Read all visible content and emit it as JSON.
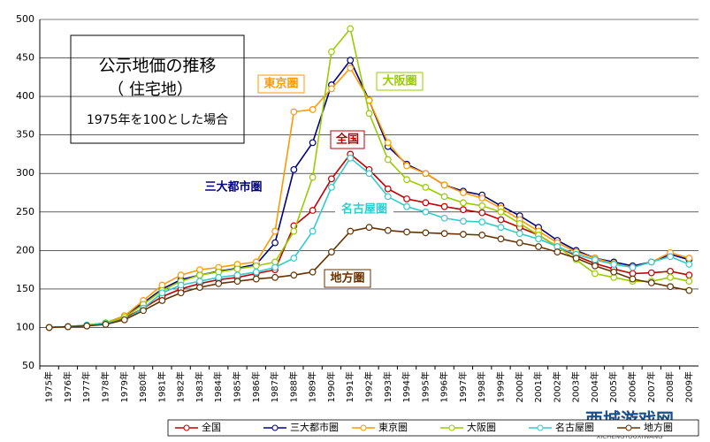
{
  "chart_data": {
    "type": "line",
    "title": "公示地価の推移",
    "subtitle": "（ 住宅地）",
    "note": "1975年を100とした場合",
    "categories": [
      "1975年",
      "1976年",
      "1977年",
      "1978年",
      "1979年",
      "1980年",
      "1981年",
      "1982年",
      "1983年",
      "1984年",
      "1985年",
      "1986年",
      "1987年",
      "1988年",
      "1989年",
      "1990年",
      "1991年",
      "1992年",
      "1993年",
      "1994年",
      "1995年",
      "1996年",
      "1997年",
      "1998年",
      "1999年",
      "2000年",
      "2001年",
      "2002年",
      "2003年",
      "2004年",
      "2005年",
      "2006年",
      "2007年",
      "2008年",
      "2009年"
    ],
    "series": [
      {
        "name": "全国",
        "color": "#c00000",
        "values": [
          100,
          101,
          102,
          105,
          112,
          125,
          140,
          150,
          157,
          162,
          165,
          170,
          175,
          232,
          252,
          293,
          325,
          305,
          280,
          267,
          262,
          257,
          253,
          249,
          240,
          230,
          220,
          205,
          193,
          183,
          176,
          170,
          171,
          173,
          168
        ]
      },
      {
        "name": "三大都市圏",
        "color": "#000080",
        "values": [
          100,
          101,
          103,
          106,
          115,
          132,
          150,
          162,
          168,
          173,
          177,
          182,
          210,
          305,
          340,
          415,
          447,
          395,
          335,
          312,
          300,
          285,
          277,
          272,
          258,
          245,
          230,
          213,
          200,
          190,
          185,
          180,
          185,
          195,
          188
        ]
      },
      {
        "name": "東京圏",
        "color": "#ff9900",
        "values": [
          100,
          101,
          103,
          106,
          115,
          135,
          155,
          168,
          175,
          178,
          182,
          185,
          225,
          380,
          383,
          410,
          437,
          395,
          340,
          310,
          300,
          285,
          275,
          268,
          255,
          240,
          225,
          210,
          198,
          190,
          183,
          178,
          185,
          197,
          190
        ]
      },
      {
        "name": "大阪圏",
        "color": "#99cc00",
        "values": [
          100,
          101,
          103,
          106,
          113,
          130,
          148,
          160,
          168,
          172,
          176,
          180,
          185,
          225,
          295,
          458,
          488,
          378,
          318,
          292,
          282,
          270,
          262,
          258,
          250,
          235,
          220,
          205,
          188,
          170,
          165,
          160,
          160,
          165,
          160
        ]
      },
      {
        "name": "名古屋圏",
        "color": "#33cccc",
        "values": [
          100,
          101,
          103,
          105,
          110,
          125,
          145,
          155,
          160,
          165,
          168,
          172,
          178,
          190,
          225,
          282,
          320,
          300,
          270,
          257,
          250,
          242,
          238,
          237,
          230,
          222,
          215,
          205,
          195,
          188,
          182,
          178,
          185,
          192,
          182
        ]
      },
      {
        "name": "地方圏",
        "color": "#663300",
        "values": [
          100,
          101,
          102,
          104,
          110,
          122,
          135,
          145,
          152,
          157,
          160,
          163,
          165,
          168,
          172,
          198,
          225,
          230,
          226,
          224,
          223,
          222,
          221,
          220,
          215,
          210,
          205,
          198,
          190,
          180,
          172,
          163,
          158,
          153,
          148
        ]
      }
    ],
    "ylim": [
      50,
      500
    ],
    "yticks": [
      50,
      100,
      150,
      200,
      250,
      300,
      350,
      400,
      450,
      500
    ],
    "grid": true,
    "legend": "bottom",
    "watermark": {
      "text": "西城游戏网",
      "subtext": "XICHENGYOUXIWANG"
    }
  }
}
